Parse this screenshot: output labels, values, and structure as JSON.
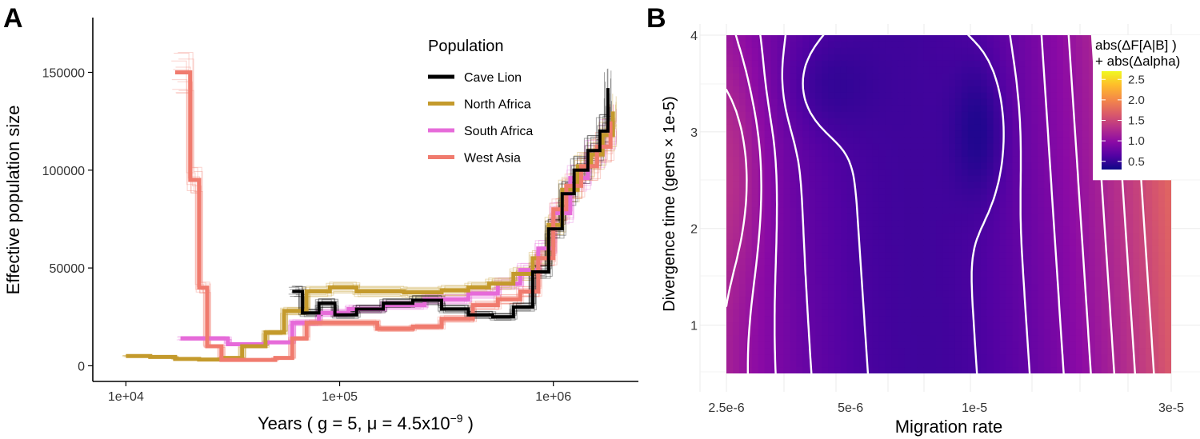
{
  "panel_a": {
    "panel_letter": "A",
    "ylabel": "Effective population size",
    "xlabel_prefix": "Years ( g = 5,  μ = 4.5x10",
    "xlabel_exp": "−9",
    "xlabel_suffix": " )",
    "legend_title": "Population"
  },
  "panel_b": {
    "panel_letter": "B",
    "ylabel": "Divergence time (gens × 1e-5)",
    "xlabel": "Migration rate",
    "colorbar_title_1": "abs(ΔF[A|B] )",
    "colorbar_title_2": "+ abs(Δalpha)"
  },
  "chart_data": [
    {
      "type": "line",
      "xscale": "log",
      "xlim": [
        7000,
        2500000
      ],
      "ylim": [
        -8000,
        178000
      ],
      "xticks": [
        {
          "value": 10000,
          "label": "1e+04"
        },
        {
          "value": 100000,
          "label": "1e+05"
        },
        {
          "value": 1000000,
          "label": "1e+06"
        }
      ],
      "yticks": [
        {
          "value": 0,
          "label": "0"
        },
        {
          "value": 50000,
          "label": "50000"
        },
        {
          "value": 100000,
          "label": "100000"
        },
        {
          "value": 150000,
          "label": "150000"
        }
      ],
      "grid": false,
      "legend_position": "top-right",
      "series": [
        {
          "name": "Cave Lion",
          "color": "#000000",
          "points": [
            [
              60000,
              38000
            ],
            [
              67000,
              27000
            ],
            [
              80000,
              32000
            ],
            [
              95000,
              26000
            ],
            [
              120000,
              29000
            ],
            [
              160000,
              32000
            ],
            [
              220000,
              33500
            ],
            [
              300000,
              29000
            ],
            [
              400000,
              26000
            ],
            [
              520000,
              25000
            ],
            [
              650000,
              30000
            ],
            [
              800000,
              48000
            ],
            [
              950000,
              70000
            ],
            [
              1100000,
              88000
            ],
            [
              1250000,
              100000
            ],
            [
              1450000,
              110000
            ],
            [
              1650000,
              120000
            ],
            [
              1800000,
              142000
            ]
          ]
        },
        {
          "name": "North Africa",
          "color": "#C49A2C",
          "points": [
            [
              10000,
              5000
            ],
            [
              13000,
              4500
            ],
            [
              17000,
              3500
            ],
            [
              22000,
              3200
            ],
            [
              28000,
              4000
            ],
            [
              35000,
              10000
            ],
            [
              45000,
              17000
            ],
            [
              55000,
              28000
            ],
            [
              70000,
              38000
            ],
            [
              90000,
              40000
            ],
            [
              120000,
              38000
            ],
            [
              200000,
              37500
            ],
            [
              300000,
              38500
            ],
            [
              400000,
              40000
            ],
            [
              500000,
              42000
            ],
            [
              650000,
              47000
            ],
            [
              800000,
              55000
            ],
            [
              950000,
              72000
            ],
            [
              1100000,
              90000
            ],
            [
              1300000,
              102000
            ],
            [
              1500000,
              108000
            ],
            [
              1700000,
              118000
            ],
            [
              1900000,
              130000
            ]
          ]
        },
        {
          "name": "South Africa",
          "color": "#E66BD9",
          "points": [
            [
              18000,
              14000
            ],
            [
              25000,
              14000
            ],
            [
              30000,
              11000
            ],
            [
              45000,
              12000
            ],
            [
              60000,
              22000
            ],
            [
              80000,
              27000
            ],
            [
              110000,
              29000
            ],
            [
              160000,
              31000
            ],
            [
              250000,
              34000
            ],
            [
              400000,
              37000
            ],
            [
              550000,
              42000
            ],
            [
              700000,
              49000
            ],
            [
              850000,
              60000
            ],
            [
              1000000,
              78000
            ],
            [
              1200000,
              96000
            ],
            [
              1450000,
              108000
            ],
            [
              1700000,
              118000
            ],
            [
              1900000,
              125000
            ]
          ]
        },
        {
          "name": "West Asia",
          "color": "#F07B6E",
          "points": [
            [
              17000,
              150000
            ],
            [
              19000,
              150000
            ],
            [
              20000,
              95000
            ],
            [
              22000,
              40000
            ],
            [
              24000,
              10000
            ],
            [
              28000,
              3000
            ],
            [
              40000,
              3000
            ],
            [
              50000,
              4000
            ],
            [
              60000,
              14000
            ],
            [
              70000,
              22000
            ],
            [
              100000,
              22000
            ],
            [
              150000,
              19000
            ],
            [
              220000,
              20000
            ],
            [
              300000,
              24000
            ],
            [
              420000,
              31000
            ],
            [
              550000,
              34000
            ],
            [
              700000,
              38000
            ],
            [
              850000,
              55000
            ],
            [
              1000000,
              80000
            ],
            [
              1150000,
              92000
            ],
            [
              1350000,
              102000
            ],
            [
              1600000,
              112000
            ],
            [
              1850000,
              125000
            ]
          ]
        }
      ]
    },
    {
      "type": "heatmap",
      "xlabel": "Migration rate",
      "ylabel": "Divergence time (gens × 1e-5)",
      "xscale": "log",
      "xlim": [
        2.5e-06,
        3e-05
      ],
      "ylim": [
        0.5,
        4
      ],
      "xticks": [
        {
          "value": 2.5e-06,
          "label": "2.5e-6"
        },
        {
          "value": 5e-06,
          "label": "5e-6"
        },
        {
          "value": 1e-05,
          "label": "1e-5"
        },
        {
          "value": 3e-05,
          "label": "3e-5"
        }
      ],
      "yticks": [
        {
          "value": 1,
          "label": "1"
        },
        {
          "value": 2,
          "label": "2"
        },
        {
          "value": 3,
          "label": "3"
        },
        {
          "value": 4,
          "label": "4"
        }
      ],
      "colorbar": {
        "min": 0.3,
        "max": 2.7,
        "ticks": [
          {
            "value": 0.5,
            "label": "0.5"
          },
          {
            "value": 1.0,
            "label": "1.0"
          },
          {
            "value": 1.5,
            "label": "1.5"
          },
          {
            "value": 2.0,
            "label": "2.0"
          },
          {
            "value": 2.5,
            "label": "2.5"
          }
        ],
        "colors": [
          "#0d0887",
          "#5302a3",
          "#8b0aa5",
          "#b83289",
          "#db5c68",
          "#f48849",
          "#febd2a",
          "#f0f921"
        ]
      },
      "contour_levels": [
        0.6,
        0.75,
        0.9,
        1.05,
        1.2,
        1.35,
        1.5
      ],
      "contour_color": "#ffffff",
      "legend_position": "top-right"
    }
  ]
}
